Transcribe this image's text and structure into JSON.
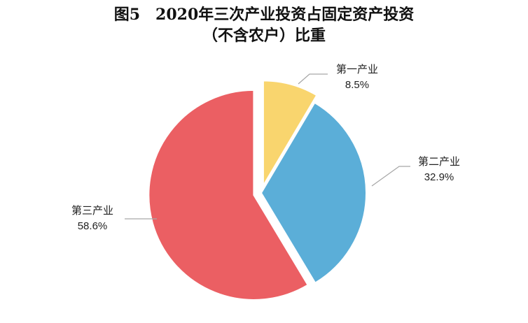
{
  "chart_data": {
    "type": "pie",
    "title": "图5　2020年三次产业投资占固定资产投资",
    "subtitle": "（不含农户）比重",
    "slices": [
      {
        "label": "第一产业",
        "value": 8.5,
        "value_label": "8.5%",
        "color": "#F9D56E",
        "exploded": true
      },
      {
        "label": "第二产业",
        "value": 32.9,
        "value_label": "32.9%",
        "color": "#5BAED8",
        "exploded": false
      },
      {
        "label": "第三产业",
        "value": 58.6,
        "value_label": "58.6%",
        "color": "#EB5F63",
        "exploded": true
      }
    ],
    "legend": "none",
    "start_angle": "12 o'clock",
    "direction": "clockwise"
  }
}
